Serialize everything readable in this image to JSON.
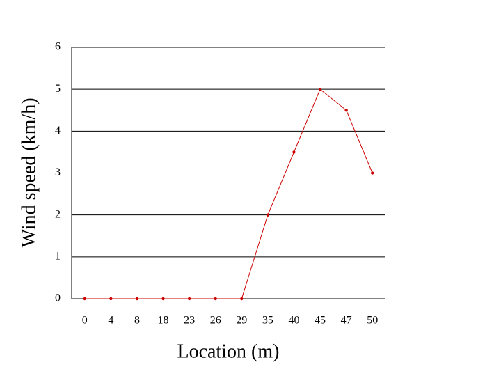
{
  "chart_data": {
    "type": "line",
    "x_label": "Location (m)",
    "y_label": "Wind speed (km/h)",
    "categories": [
      "0",
      "4",
      "8",
      "18",
      "23",
      "26",
      "29",
      "35",
      "40",
      "45",
      "47",
      "50"
    ],
    "values": [
      0,
      0,
      0,
      0,
      0,
      0,
      0,
      2,
      3.5,
      5,
      4.5,
      3
    ],
    "color": "#cc0000",
    "ylim": [
      0,
      6
    ],
    "yticks": [
      0,
      1,
      2,
      3,
      4,
      5,
      6
    ],
    "grid": true
  }
}
